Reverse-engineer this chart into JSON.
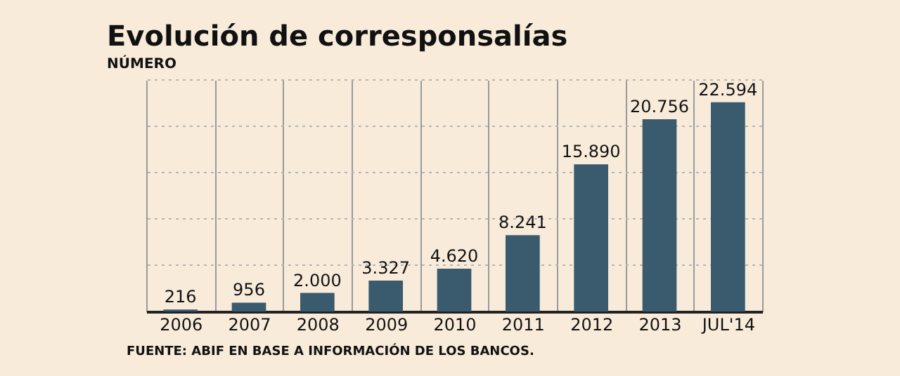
{
  "chart_data": {
    "type": "bar",
    "title": "Evolución de corresponsalías",
    "subtitle": "NÚMERO",
    "categories": [
      "2006",
      "2007",
      "2008",
      "2009",
      "2010",
      "2011",
      "2012",
      "2013",
      "JUL'14"
    ],
    "values": [
      216,
      956,
      2000,
      3327,
      4620,
      8241,
      15890,
      20756,
      22594
    ],
    "color": "#3a5a6e",
    "data_labels": true,
    "value_labels": [
      "216",
      "956",
      "2.000",
      "3.327",
      "4.620",
      "8.241",
      "15.890",
      "20.756",
      "22.594"
    ],
    "ylim": [
      0,
      25000
    ],
    "yticks": [
      {
        "value": 0,
        "label": null
      },
      {
        "value": 5000,
        "label": null
      },
      {
        "value": 10000,
        "label": null
      },
      {
        "value": 15000,
        "label": null
      },
      {
        "value": 20000,
        "label": null
      },
      {
        "value": 25000,
        "label": null
      }
    ],
    "tick_labels": "x",
    "grid": true,
    "annotations": [
      "FUENTE: ABIF EN BASE A INFORMACIÓN DE LOS BANCOS."
    ]
  }
}
